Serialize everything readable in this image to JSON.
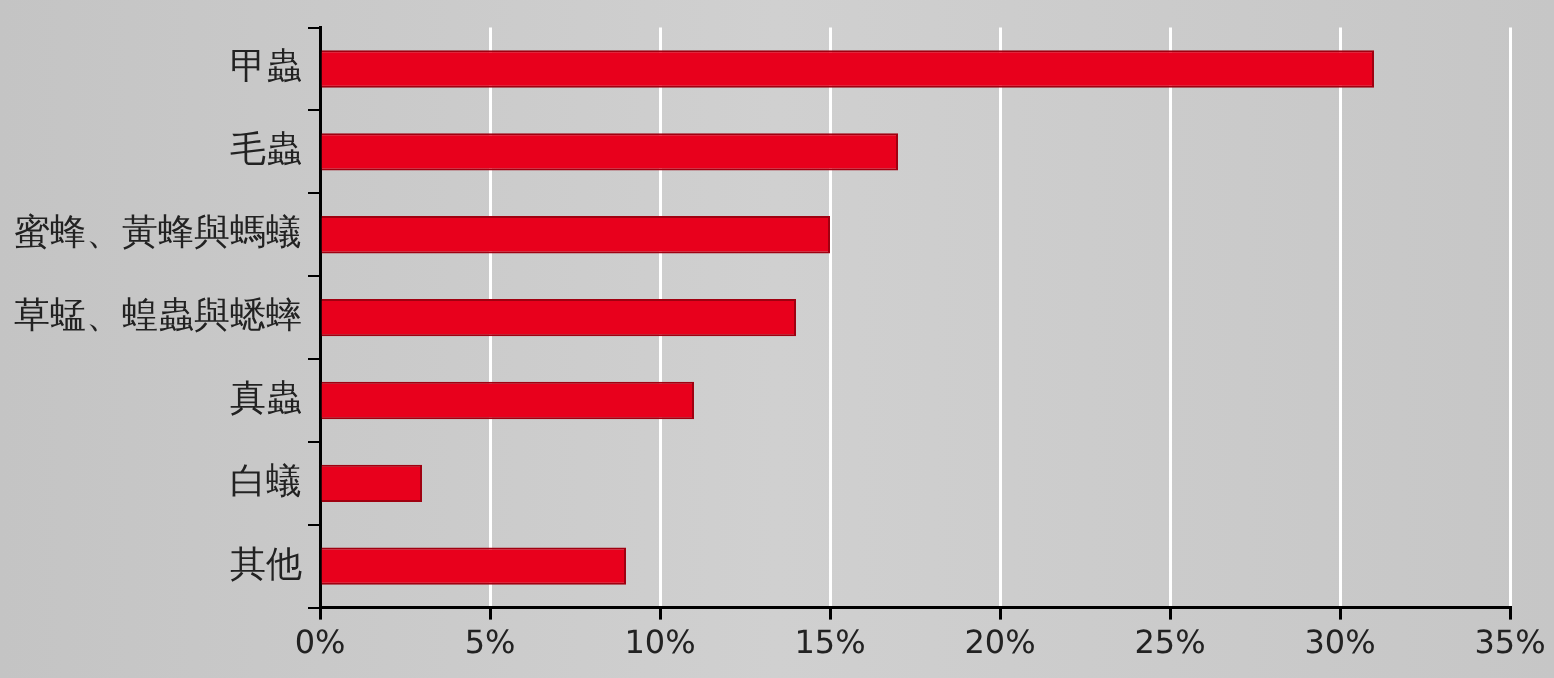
{
  "chart_data": {
    "type": "bar",
    "orientation": "horizontal",
    "categories": [
      "甲蟲",
      "毛蟲",
      "蜜蜂、黃蜂與螞蟻",
      "草蜢、蝗蟲與蟋蟀",
      "真蟲",
      "白蟻",
      "其他"
    ],
    "values": [
      31,
      17,
      15,
      14,
      11,
      3,
      9
    ],
    "color": "#e8001c",
    "xlim": [
      0,
      35
    ],
    "xticks": [
      {
        "value": 0,
        "label": "0%"
      },
      {
        "value": 5,
        "label": "5%"
      },
      {
        "value": 10,
        "label": "10%"
      },
      {
        "value": 15,
        "label": "15%"
      },
      {
        "value": 20,
        "label": "20%"
      },
      {
        "value": 25,
        "label": "25%"
      },
      {
        "value": 30,
        "label": "30%"
      },
      {
        "value": 35,
        "label": "35%"
      }
    ],
    "grid": "x",
    "legend": false
  }
}
